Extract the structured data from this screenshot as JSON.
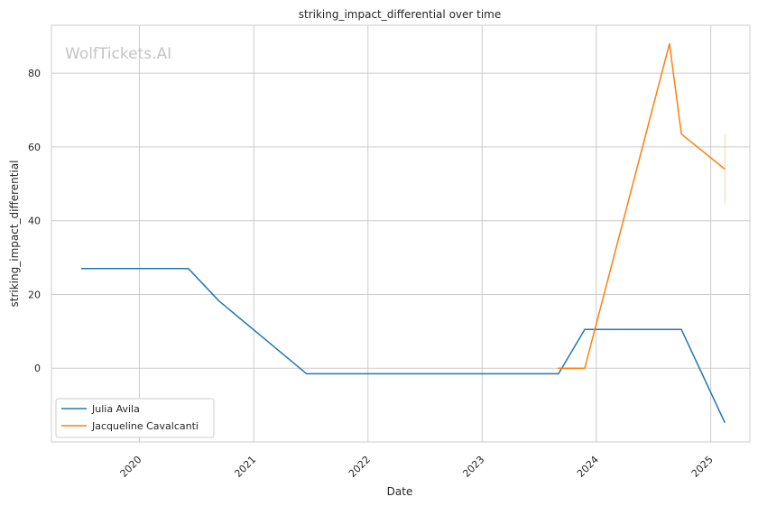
{
  "chart_data": {
    "type": "line",
    "title": "striking_impact_differential over time",
    "xlabel": "Date",
    "ylabel": "striking_impact_differential",
    "watermark": "WolfTickets.AI",
    "x_ticks": [
      "2020",
      "2021",
      "2022",
      "2023",
      "2024",
      "2025"
    ],
    "y_ticks": [
      "0",
      "20",
      "40",
      "60",
      "80"
    ],
    "xlim": [
      "2019-03-26",
      "2025-05-06"
    ],
    "ylim": [
      -20,
      93
    ],
    "grid": true,
    "legend_position": "lower-left",
    "series": [
      {
        "name": "Julia Avila",
        "color": "#1f77b4",
        "points": [
          {
            "x": "2019-06-29",
            "y": 27
          },
          {
            "x": "2020-06-06",
            "y": 27
          },
          {
            "x": "2020-09-12",
            "y": 18.2
          },
          {
            "x": "2021-06-19",
            "y": -1.5
          },
          {
            "x": "2023-09-02",
            "y": -1.5
          },
          {
            "x": "2023-11-25",
            "y": 10.5
          },
          {
            "x": "2024-09-29",
            "y": 10.5
          },
          {
            "x": "2025-02-15",
            "y": -14.8
          }
        ]
      },
      {
        "name": "Jacqueline Cavalcanti",
        "color": "#ff7f0e",
        "points": [
          {
            "x": "2023-08-31",
            "y": 0
          },
          {
            "x": "2023-11-25",
            "y": 0
          },
          {
            "x": "2024-08-22",
            "y": 88
          },
          {
            "x": "2024-09-29",
            "y": 63.5
          },
          {
            "x": "2025-02-15",
            "y": 54
          }
        ]
      }
    ],
    "error_bar": {
      "x": "2025-02-15",
      "y_low": 44.5,
      "y_high": 63.5,
      "color": "#ff7f0e"
    }
  }
}
